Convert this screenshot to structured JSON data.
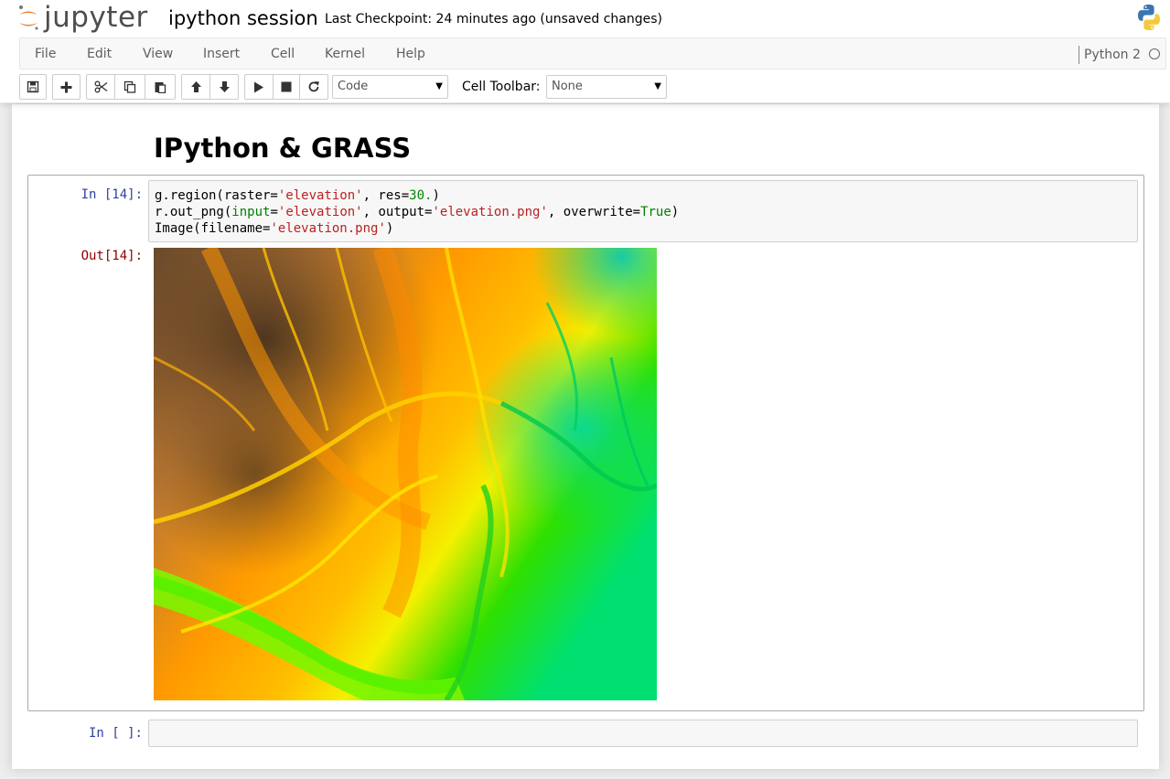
{
  "header": {
    "logo_text": "jupyter",
    "notebook_name": "ipython session",
    "checkpoint": "Last Checkpoint: 24 minutes ago (unsaved changes)"
  },
  "menu": {
    "items": [
      "File",
      "Edit",
      "View",
      "Insert",
      "Cell",
      "Kernel",
      "Help"
    ],
    "kernel_name": "Python 2"
  },
  "toolbar": {
    "buttons": [
      "save-icon",
      "plus-icon",
      "cut-icon",
      "copy-icon",
      "paste-icon",
      "arrow-up-icon",
      "arrow-down-icon",
      "play-icon",
      "stop-icon",
      "restart-icon"
    ],
    "cell_type": "Code",
    "cell_toolbar_label": "Cell Toolbar:",
    "cell_toolbar_value": "None"
  },
  "notebook": {
    "heading": "IPython & GRASS",
    "cells": [
      {
        "in_prompt": "In [14]:",
        "code": [
          [
            {
              "t": "g.region(raster="
            },
            {
              "t": "'elevation'",
              "c": "s"
            },
            {
              "t": ", res="
            },
            {
              "t": "30.",
              "c": "n"
            },
            {
              "t": ")"
            }
          ],
          [
            {
              "t": "r.out_png("
            },
            {
              "t": "input",
              "c": "kw"
            },
            {
              "t": "="
            },
            {
              "t": "'elevation'",
              "c": "s"
            },
            {
              "t": ", output="
            },
            {
              "t": "'elevation.png'",
              "c": "s"
            },
            {
              "t": ", overwrite="
            },
            {
              "t": "True",
              "c": "kw"
            },
            {
              "t": ")"
            }
          ],
          [
            {
              "t": "Image(filename="
            },
            {
              "t": "'elevation.png'",
              "c": "s"
            },
            {
              "t": ")"
            }
          ]
        ],
        "out_prompt": "Out[14]:"
      },
      {
        "in_prompt": "In [ ]:",
        "code": []
      }
    ]
  },
  "colors": {
    "prompt_in": "#303f9f",
    "prompt_out": "#8b0000",
    "string": "#ba2121",
    "number": "#008800",
    "keyword": "#008000"
  }
}
